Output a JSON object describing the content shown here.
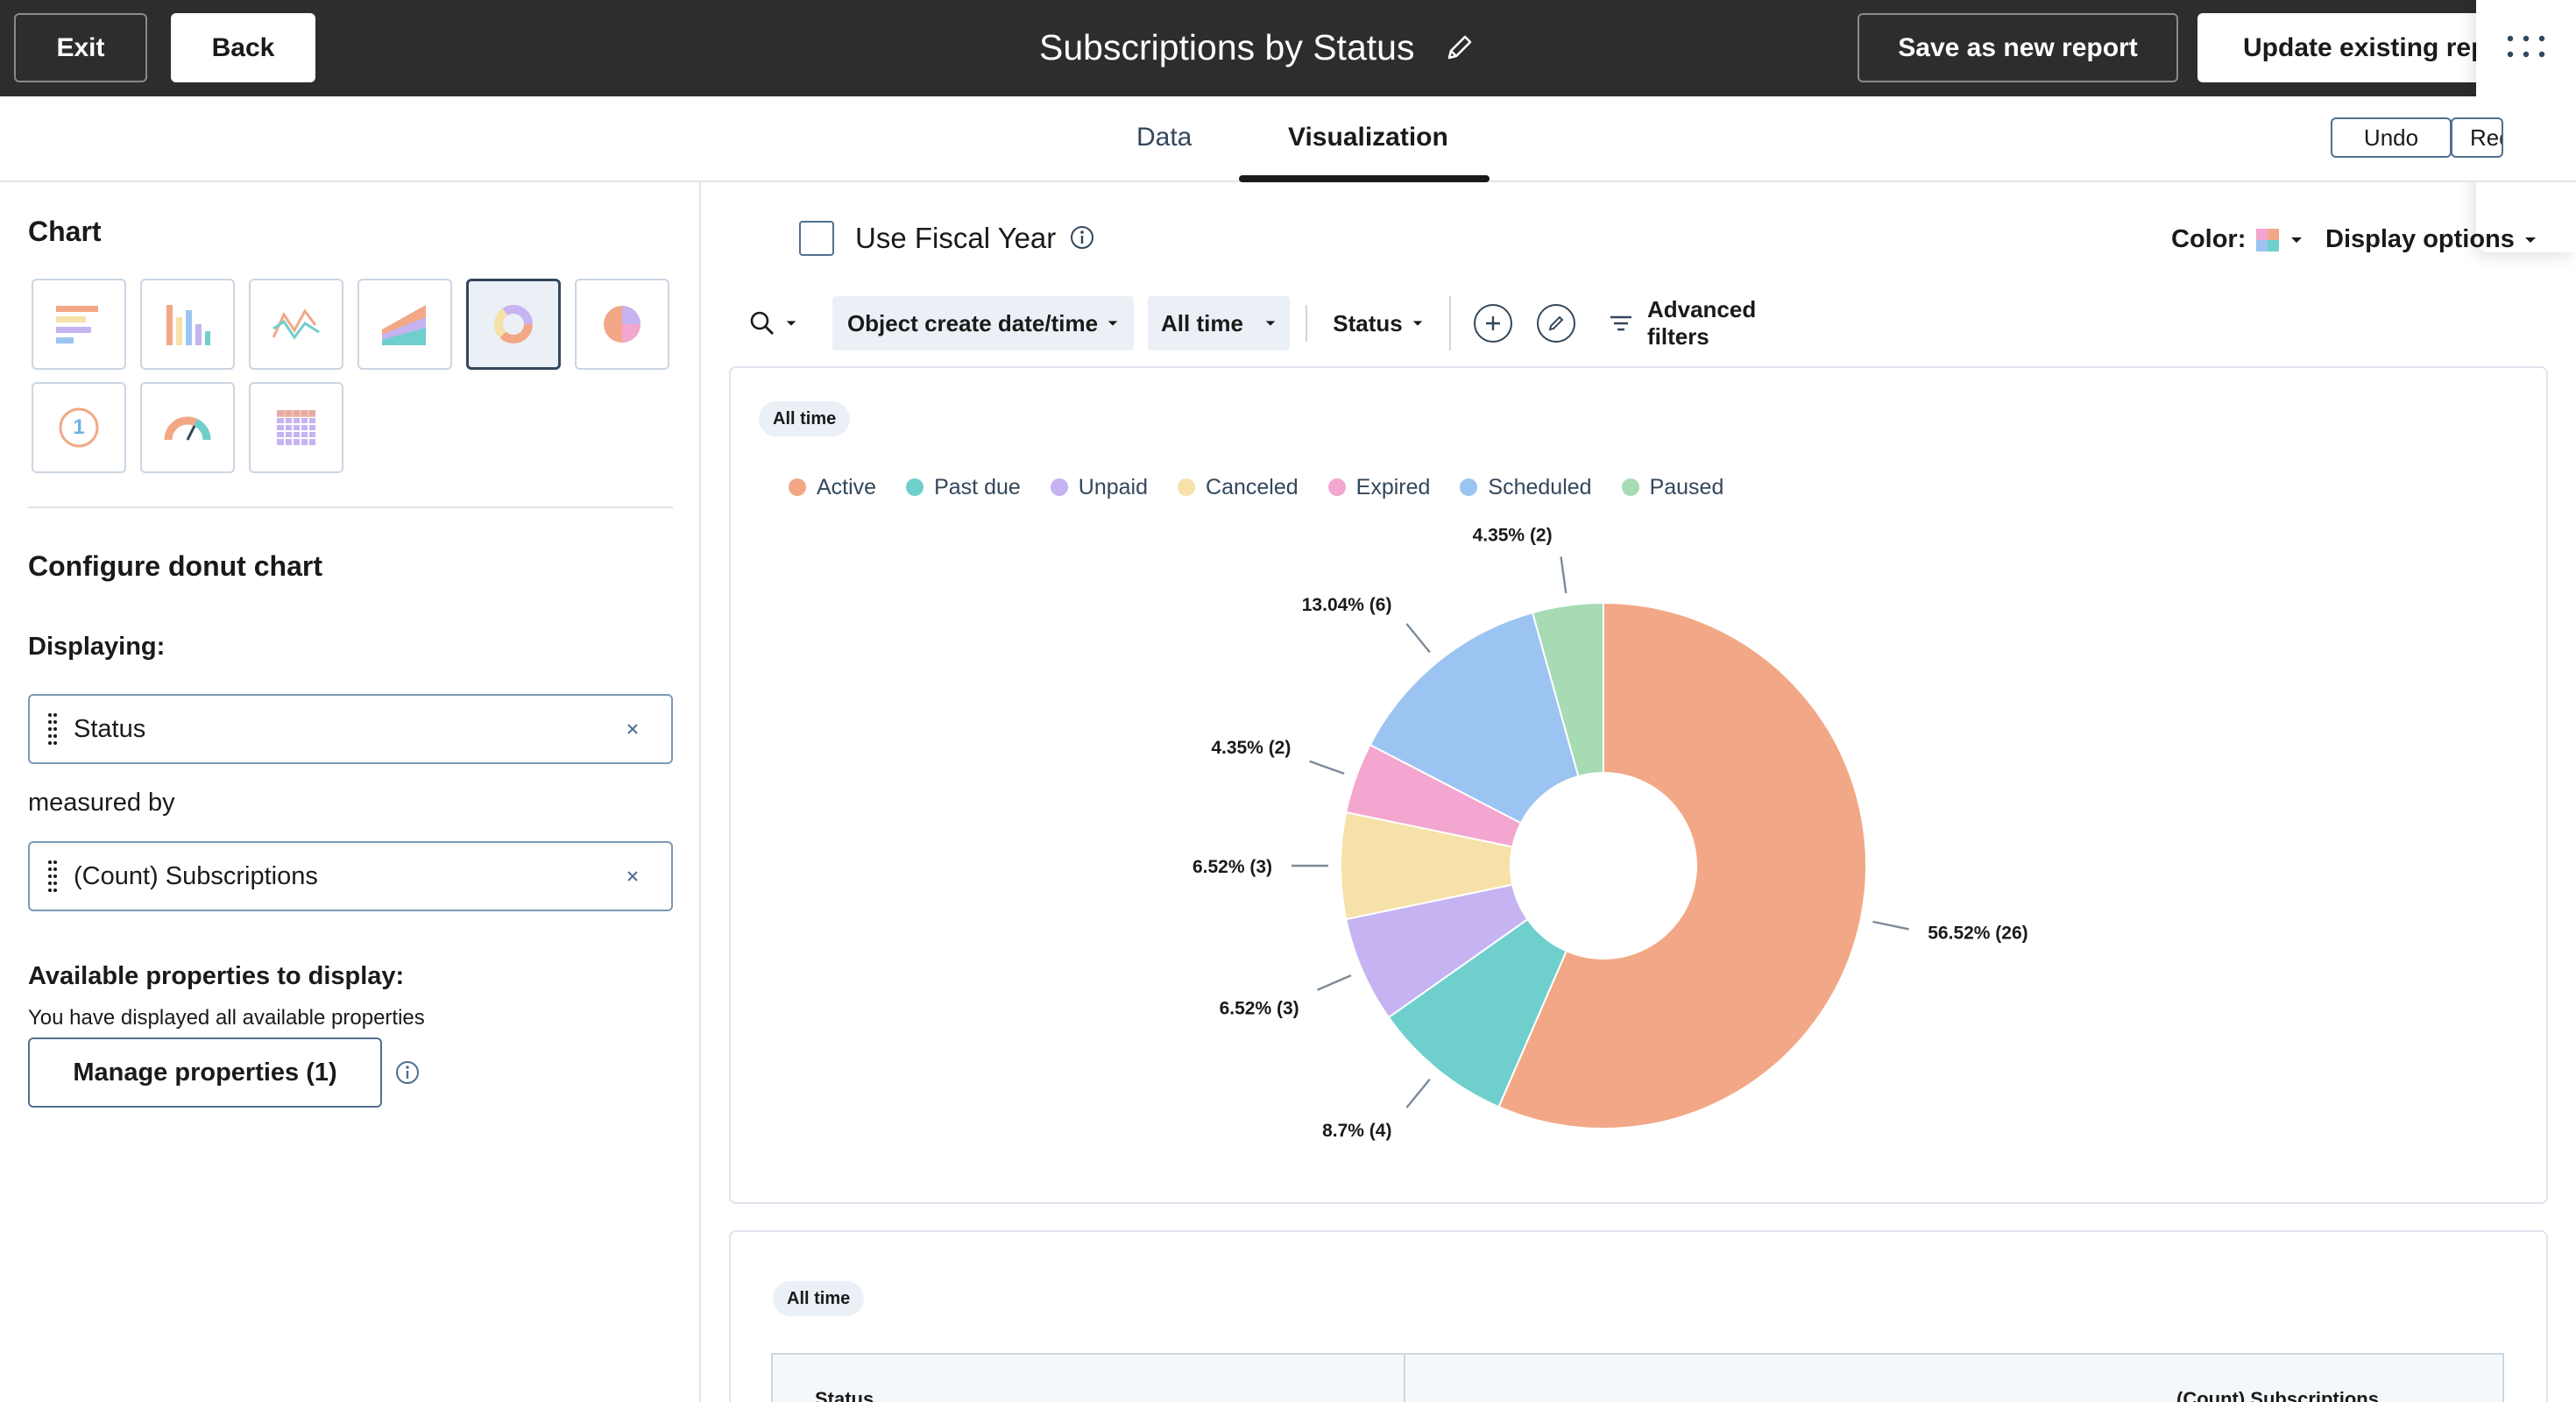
{
  "topbar": {
    "exit_label": "Exit",
    "back_label": "Back",
    "report_title": "Subscriptions by Status",
    "save_new_label": "Save as new report",
    "update_label": "Update existing report"
  },
  "tabs": [
    {
      "label": "Data",
      "active": false
    },
    {
      "label": "Visualization",
      "active": true
    }
  ],
  "history": {
    "undo_label": "Undo",
    "redo_label": "Redo"
  },
  "left_panel": {
    "chart_heading": "Chart",
    "chart_types": [
      {
        "icon": "horizontal-bar-chart-icon"
      },
      {
        "icon": "vertical-bar-chart-icon"
      },
      {
        "icon": "line-chart-icon"
      },
      {
        "icon": "area-chart-icon"
      },
      {
        "icon": "donut-chart-icon",
        "selected": true
      },
      {
        "icon": "pie-chart-icon"
      },
      {
        "icon": "kpi-number-icon",
        "text": "1"
      },
      {
        "icon": "gauge-chart-icon"
      },
      {
        "icon": "pivot-table-icon"
      }
    ],
    "configure_heading": "Configure donut chart",
    "displaying_label": "Displaying:",
    "displaying_value": "Status",
    "measured_by_label": "measured by",
    "measure_value": "(Count) Subscriptions",
    "available_heading": "Available properties to display:",
    "available_note": "You have displayed all available properties",
    "manage_button": "Manage properties (1)"
  },
  "toolbar": {
    "fiscal_year_label": "Use Fiscal Year",
    "fiscal_year_checked": false,
    "color_label": "Color:",
    "display_options_label": "Display options",
    "filters": [
      "Object create date/time",
      "All time",
      "Status"
    ],
    "advanced_filters_label": "Advanced filters"
  },
  "chart_card": {
    "time_chip": "All time"
  },
  "table_card": {
    "time_chip": "All time",
    "columns": [
      "Status",
      "(Count) Subscriptions"
    ]
  },
  "colors": {
    "topbar": "#2d2d2d",
    "active": "#f2a886",
    "past_due": "#6fcfcc",
    "unpaid": "#c5b3f2",
    "canceled": "#f6e1a8",
    "expired": "#f3a6cf",
    "scheduled": "#9cc4f2",
    "paused": "#a6dbb4"
  },
  "chart_data": {
    "type": "pie",
    "variant": "donut",
    "categories": [
      "Active",
      "Past due",
      "Unpaid",
      "Canceled",
      "Expired",
      "Scheduled",
      "Paused"
    ],
    "values": [
      26,
      4,
      3,
      3,
      2,
      6,
      2
    ],
    "data_labels": [
      "56.52% (26)",
      "8.7% (4)",
      "6.52% (3)",
      "6.52% (3)",
      "4.35% (2)",
      "13.04% (6)",
      "4.35% (2)"
    ],
    "colors": [
      "#f2a886",
      "#6fcfcc",
      "#c5b3f2",
      "#f6e1a8",
      "#f3a6cf",
      "#9cc4f2",
      "#a6dbb4"
    ],
    "legend_position": "top-left"
  }
}
